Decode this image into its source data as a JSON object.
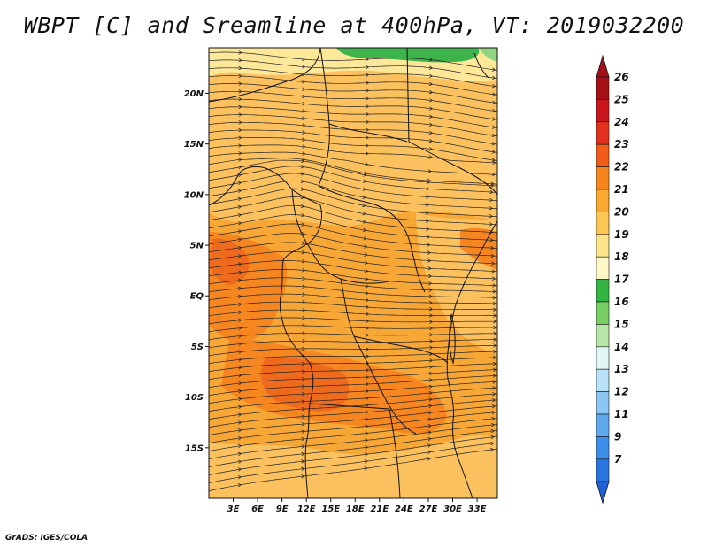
{
  "title": "WBPT [C] and Sreamline at 400hPa, VT: 2019032200",
  "credit": "GrADS: IGES/COLA",
  "map": {
    "lon_range": [
      0,
      35.5
    ],
    "lat_range": [
      -20,
      24.5
    ],
    "lat_ticks": [
      {
        "value": 20,
        "label": "20N"
      },
      {
        "value": 15,
        "label": "15N"
      },
      {
        "value": 10,
        "label": "10N"
      },
      {
        "value": 5,
        "label": "5N"
      },
      {
        "value": 0,
        "label": "EQ"
      },
      {
        "value": -5,
        "label": "5S"
      },
      {
        "value": -10,
        "label": "10S"
      },
      {
        "value": -15,
        "label": "15S"
      }
    ],
    "lon_ticks": [
      {
        "value": 3,
        "label": "3E"
      },
      {
        "value": 6,
        "label": "6E"
      },
      {
        "value": 9,
        "label": "9E"
      },
      {
        "value": 12,
        "label": "12E"
      },
      {
        "value": 15,
        "label": "15E"
      },
      {
        "value": 18,
        "label": "18E"
      },
      {
        "value": 21,
        "label": "21E"
      },
      {
        "value": 24,
        "label": "24E"
      },
      {
        "value": 27,
        "label": "27E"
      },
      {
        "value": 30,
        "label": "30E"
      },
      {
        "value": 33,
        "label": "33E"
      }
    ],
    "fill_colors": {
      "c19": "#fde89a",
      "c20": "#fbc15e",
      "c21": "#f7a735",
      "c22": "#f58620",
      "c23": "#ee6a1c",
      "c17": "#3cb44a",
      "c16": "#8fd57f"
    }
  },
  "colorbar": {
    "levels": [
      {
        "label": "26",
        "color": "#a50f15"
      },
      {
        "label": "25",
        "color": "#c8141a"
      },
      {
        "label": "24",
        "color": "#e3301c"
      },
      {
        "label": "23",
        "color": "#f25c19"
      },
      {
        "label": "22",
        "color": "#f7851e"
      },
      {
        "label": "21",
        "color": "#f9a92f"
      },
      {
        "label": "20",
        "color": "#fcc654"
      },
      {
        "label": "19",
        "color": "#fde48a"
      },
      {
        "label": "18",
        "color": "#fef8c6"
      },
      {
        "label": "17",
        "color": "#33b443"
      },
      {
        "label": "16",
        "color": "#78d064"
      },
      {
        "label": "15",
        "color": "#b7e6a9"
      },
      {
        "label": "14",
        "color": "#e2f5f5"
      },
      {
        "label": "13",
        "color": "#b9e2f8"
      },
      {
        "label": "12",
        "color": "#8cc6f3"
      },
      {
        "label": "11",
        "color": "#5ea9ee"
      },
      {
        "label": "9",
        "color": "#3d8ee8"
      },
      {
        "label": "7",
        "color": "#2a74e0"
      }
    ],
    "top_color": "#a50f15",
    "bottom_color": "#1f62d8"
  }
}
